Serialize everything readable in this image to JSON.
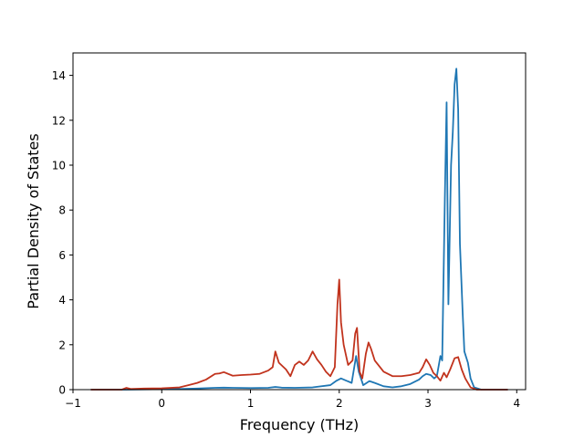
{
  "chart_data": {
    "type": "line",
    "title": "",
    "xlabel": "Frequency (THz)",
    "ylabel": "Partial Density of States",
    "xlim": [
      -1.0,
      4.1
    ],
    "ylim": [
      0,
      15
    ],
    "xticks": [
      -1,
      0,
      1,
      2,
      3,
      4
    ],
    "xtick_labels": [
      "−1",
      "0",
      "1",
      "2",
      "3",
      "4"
    ],
    "yticks": [
      0,
      2,
      4,
      6,
      8,
      10,
      12,
      14
    ],
    "ytick_labels": [
      "0",
      "2",
      "4",
      "6",
      "8",
      "10",
      "12",
      "14"
    ],
    "grid": false,
    "legend": "none",
    "series": [
      {
        "color": "#1f77b4",
        "points": [
          [
            -0.8,
            0
          ],
          [
            -0.4,
            0
          ],
          [
            -0.2,
            0.01
          ],
          [
            0.0,
            0.02
          ],
          [
            0.2,
            0.03
          ],
          [
            0.4,
            0.05
          ],
          [
            0.6,
            0.08
          ],
          [
            0.7,
            0.09
          ],
          [
            0.8,
            0.08
          ],
          [
            1.0,
            0.07
          ],
          [
            1.2,
            0.08
          ],
          [
            1.28,
            0.12
          ],
          [
            1.35,
            0.09
          ],
          [
            1.5,
            0.08
          ],
          [
            1.7,
            0.1
          ],
          [
            1.9,
            0.2
          ],
          [
            1.97,
            0.4
          ],
          [
            2.02,
            0.5
          ],
          [
            2.08,
            0.4
          ],
          [
            2.14,
            0.3
          ],
          [
            2.19,
            1.5
          ],
          [
            2.22,
            0.8
          ],
          [
            2.27,
            0.2
          ],
          [
            2.34,
            0.38
          ],
          [
            2.4,
            0.3
          ],
          [
            2.5,
            0.15
          ],
          [
            2.6,
            0.1
          ],
          [
            2.7,
            0.15
          ],
          [
            2.8,
            0.25
          ],
          [
            2.9,
            0.45
          ],
          [
            2.94,
            0.6
          ],
          [
            2.98,
            0.7
          ],
          [
            3.03,
            0.65
          ],
          [
            3.07,
            0.5
          ],
          [
            3.1,
            0.6
          ],
          [
            3.14,
            1.5
          ],
          [
            3.16,
            1.3
          ],
          [
            3.19,
            8.5
          ],
          [
            3.21,
            12.8
          ],
          [
            3.23,
            3.8
          ],
          [
            3.26,
            10.0
          ],
          [
            3.28,
            11.5
          ],
          [
            3.3,
            13.6
          ],
          [
            3.32,
            14.3
          ],
          [
            3.34,
            12.5
          ],
          [
            3.36,
            6.5
          ],
          [
            3.39,
            3.5
          ],
          [
            3.41,
            1.7
          ],
          [
            3.45,
            1.2
          ],
          [
            3.48,
            0.5
          ],
          [
            3.52,
            0.1
          ],
          [
            3.6,
            0
          ],
          [
            3.9,
            0
          ]
        ]
      },
      {
        "color": "#c1331d",
        "points": [
          [
            -0.8,
            0
          ],
          [
            -0.45,
            0
          ],
          [
            -0.4,
            0.08
          ],
          [
            -0.35,
            0.03
          ],
          [
            -0.2,
            0.05
          ],
          [
            0.0,
            0.06
          ],
          [
            0.2,
            0.1
          ],
          [
            0.3,
            0.2
          ],
          [
            0.4,
            0.3
          ],
          [
            0.5,
            0.45
          ],
          [
            0.6,
            0.7
          ],
          [
            0.65,
            0.72
          ],
          [
            0.7,
            0.78
          ],
          [
            0.8,
            0.62
          ],
          [
            0.9,
            0.65
          ],
          [
            1.0,
            0.67
          ],
          [
            1.1,
            0.7
          ],
          [
            1.2,
            0.85
          ],
          [
            1.25,
            1.0
          ],
          [
            1.28,
            1.7
          ],
          [
            1.32,
            1.2
          ],
          [
            1.4,
            0.9
          ],
          [
            1.45,
            0.6
          ],
          [
            1.5,
            1.1
          ],
          [
            1.55,
            1.25
          ],
          [
            1.6,
            1.1
          ],
          [
            1.65,
            1.3
          ],
          [
            1.7,
            1.7
          ],
          [
            1.75,
            1.35
          ],
          [
            1.8,
            1.1
          ],
          [
            1.85,
            0.8
          ],
          [
            1.9,
            0.6
          ],
          [
            1.95,
            1.0
          ],
          [
            1.98,
            3.8
          ],
          [
            2.0,
            4.9
          ],
          [
            2.02,
            3.0
          ],
          [
            2.05,
            2.0
          ],
          [
            2.1,
            1.1
          ],
          [
            2.15,
            1.3
          ],
          [
            2.18,
            2.5
          ],
          [
            2.2,
            2.75
          ],
          [
            2.23,
            0.8
          ],
          [
            2.26,
            0.5
          ],
          [
            2.3,
            1.6
          ],
          [
            2.33,
            2.1
          ],
          [
            2.36,
            1.8
          ],
          [
            2.4,
            1.3
          ],
          [
            2.5,
            0.8
          ],
          [
            2.6,
            0.6
          ],
          [
            2.7,
            0.6
          ],
          [
            2.8,
            0.65
          ],
          [
            2.9,
            0.75
          ],
          [
            2.94,
            1.0
          ],
          [
            2.98,
            1.35
          ],
          [
            3.02,
            1.1
          ],
          [
            3.06,
            0.75
          ],
          [
            3.1,
            0.6
          ],
          [
            3.14,
            0.4
          ],
          [
            3.18,
            0.75
          ],
          [
            3.21,
            0.55
          ],
          [
            3.25,
            0.9
          ],
          [
            3.3,
            1.4
          ],
          [
            3.34,
            1.45
          ],
          [
            3.38,
            0.9
          ],
          [
            3.42,
            0.5
          ],
          [
            3.48,
            0.1
          ],
          [
            3.55,
            0
          ],
          [
            3.9,
            0
          ]
        ]
      }
    ]
  }
}
